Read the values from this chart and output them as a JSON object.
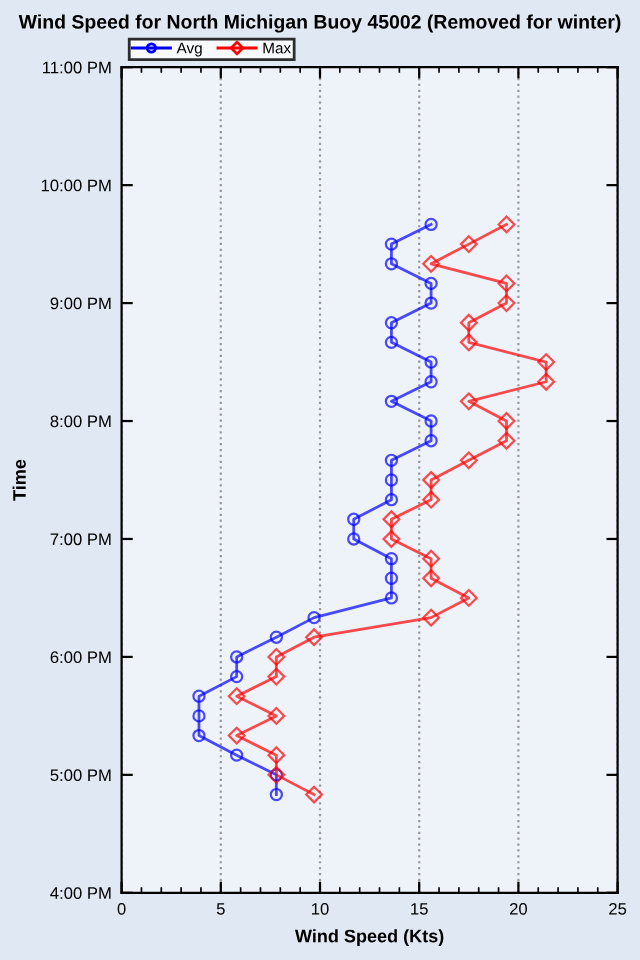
{
  "chart_data": {
    "type": "line",
    "orientation": "horizontal",
    "title": "Wind Speed for North Michigan Buoy 45002 (Removed for winter)",
    "xlabel": "Wind Speed (Kts)",
    "ylabel": "Time",
    "x": [
      16.833,
      17.0,
      17.167,
      17.333,
      17.5,
      17.667,
      17.833,
      18.0,
      18.167,
      18.333,
      18.5,
      18.667,
      18.833,
      19.0,
      19.167,
      19.333,
      19.5,
      19.667,
      19.833,
      20.0,
      20.167,
      20.333,
      20.5,
      20.667,
      20.833,
      21.0,
      21.167,
      21.333,
      21.5,
      21.667
    ],
    "series": [
      {
        "name": "Avg",
        "color": "#0000ff",
        "marker": "circle",
        "values": [
          7.8,
          7.8,
          5.8,
          3.9,
          3.9,
          3.9,
          5.8,
          5.8,
          7.8,
          9.7,
          13.6,
          13.6,
          13.6,
          11.7,
          11.7,
          13.6,
          13.6,
          13.6,
          15.6,
          15.6,
          13.6,
          15.6,
          15.6,
          13.6,
          13.6,
          15.6,
          15.6,
          13.6,
          13.6,
          15.6
        ]
      },
      {
        "name": "Max",
        "color": "#ff0000",
        "marker": "diamond",
        "values": [
          9.7,
          7.8,
          7.8,
          5.8,
          7.8,
          5.8,
          7.8,
          7.8,
          9.7,
          15.6,
          17.5,
          15.6,
          15.6,
          13.6,
          13.6,
          15.6,
          15.6,
          17.5,
          19.4,
          19.4,
          17.5,
          21.4,
          21.4,
          17.5,
          17.5,
          19.4,
          19.4,
          15.6,
          17.5,
          19.4
        ]
      }
    ],
    "xlim": [
      0,
      25
    ],
    "xticks": [
      0,
      5,
      10,
      15,
      20,
      25
    ],
    "ylim": [
      16,
      23
    ],
    "yticks": [
      {
        "value": 16,
        "label": "4:00 PM"
      },
      {
        "value": 17,
        "label": "5:00 PM"
      },
      {
        "value": 18,
        "label": "6:00 PM"
      },
      {
        "value": 19,
        "label": "7:00 PM"
      },
      {
        "value": 20,
        "label": "8:00 PM"
      },
      {
        "value": 21,
        "label": "9:00 PM"
      },
      {
        "value": 22,
        "label": "10:00 PM"
      },
      {
        "value": 23,
        "label": "11:00 PM"
      }
    ],
    "grid": "x",
    "legend": "top left",
    "line_style": "solid"
  }
}
